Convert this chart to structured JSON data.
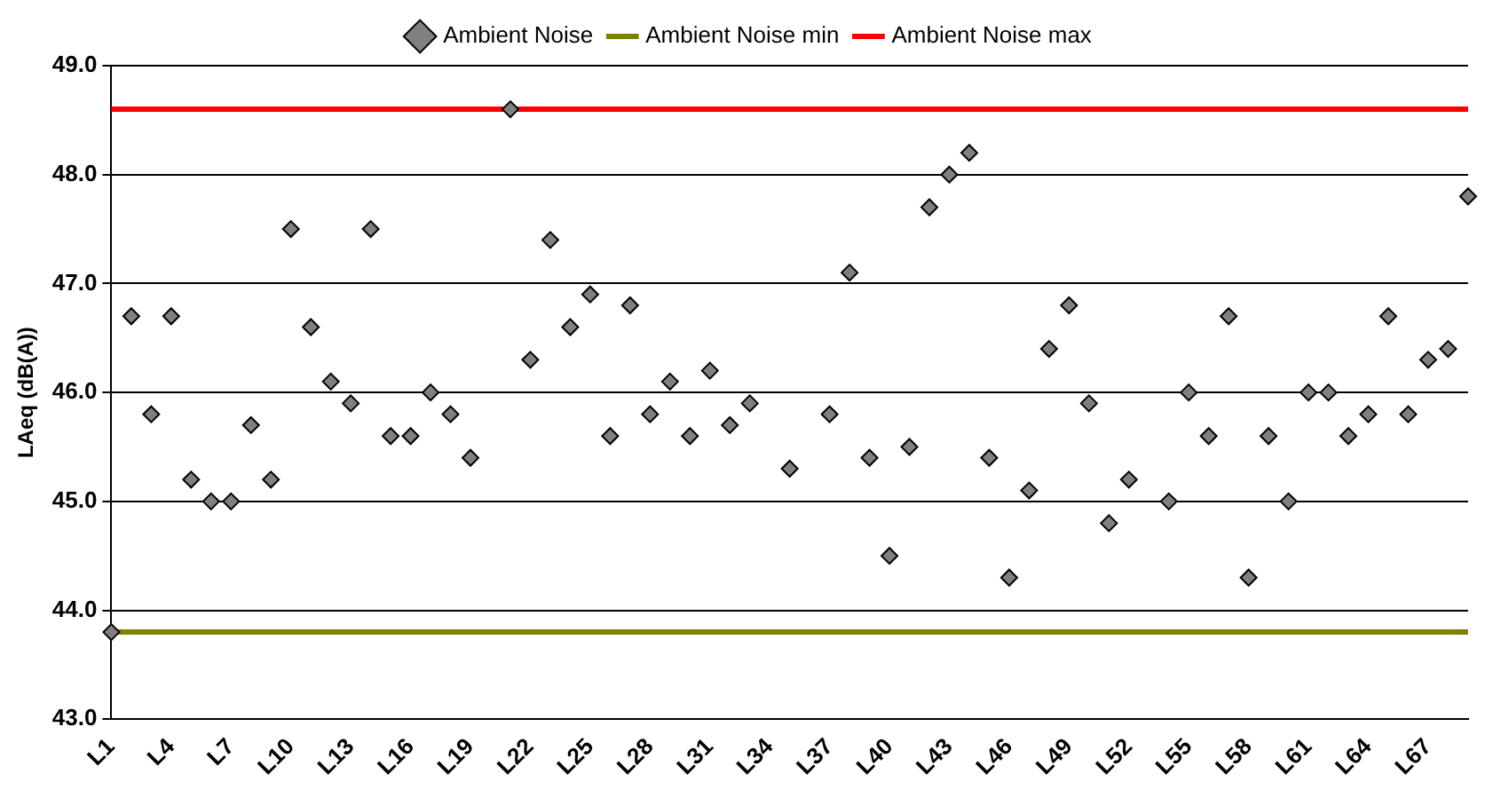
{
  "chart_data": {
    "type": "scatter",
    "ylabel": "LAeq (dB(A))",
    "categories": [
      "L1",
      null,
      null,
      "L4",
      null,
      null,
      "L7",
      null,
      null,
      "L10",
      null,
      null,
      "L13",
      null,
      null,
      "L16",
      null,
      null,
      "L19",
      null,
      null,
      "L22",
      null,
      null,
      "L25",
      null,
      null,
      "L28",
      null,
      null,
      "L31",
      null,
      null,
      "L34",
      null,
      null,
      "L37",
      null,
      null,
      "L40",
      null,
      null,
      "L43",
      null,
      null,
      "L46",
      null,
      null,
      "L49",
      null,
      null,
      "L52",
      null,
      null,
      "L55",
      null,
      null,
      "L58",
      null,
      null,
      "L61",
      null,
      null,
      "L64",
      null,
      null,
      "L67",
      null,
      null
    ],
    "series": [
      {
        "name": "Ambient Noise",
        "color": "#808080",
        "values": [
          43.8,
          46.7,
          45.8,
          46.7,
          45.2,
          45.0,
          45.0,
          45.7,
          45.2,
          47.5,
          46.6,
          46.1,
          45.9,
          47.5,
          45.6,
          45.6,
          46.0,
          45.8,
          45.4,
          null,
          48.6,
          46.3,
          47.4,
          46.6,
          46.9,
          45.6,
          46.8,
          45.8,
          46.1,
          45.6,
          46.2,
          45.7,
          45.9,
          null,
          45.3,
          null,
          45.8,
          47.1,
          45.4,
          44.5,
          45.5,
          47.7,
          48.0,
          48.2,
          45.4,
          44.3,
          45.1,
          46.4,
          46.8,
          45.9,
          44.8,
          45.2,
          null,
          45.0,
          46.0,
          45.6,
          46.7,
          44.3,
          45.6,
          45.0,
          46.0,
          46.0,
          45.6,
          45.8,
          46.7,
          45.8,
          46.3,
          46.4,
          47.8
        ]
      }
    ],
    "ref_lines": [
      {
        "axis": "y",
        "value": 43.8,
        "label": "Ambient Noise min",
        "color": "#808000"
      },
      {
        "axis": "y",
        "value": 48.6,
        "label": "Ambient Noise max",
        "color": "#ff0000"
      }
    ],
    "ylim": [
      43,
      49
    ],
    "yticks": [
      {
        "value": 43,
        "label": "43.0"
      },
      {
        "value": 44,
        "label": "44.0"
      },
      {
        "value": 45,
        "label": "45.0"
      },
      {
        "value": 46,
        "label": "46.0"
      },
      {
        "value": 47,
        "label": "47.0"
      },
      {
        "value": 48,
        "label": "48.0"
      },
      {
        "value": 49,
        "label": "49.0"
      }
    ],
    "grid": "y",
    "legend": "top",
    "marker": "diamond"
  }
}
